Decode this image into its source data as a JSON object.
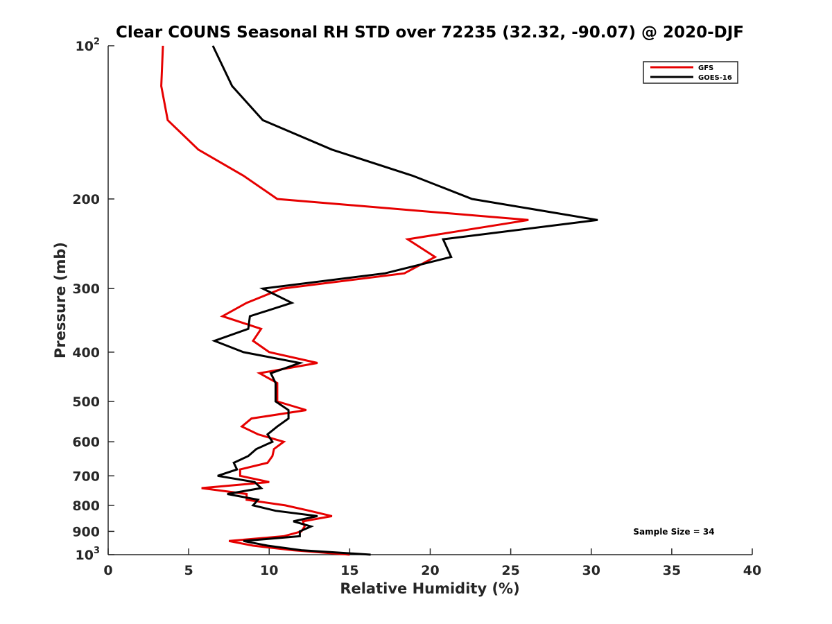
{
  "chart_data": {
    "type": "line",
    "title": "Clear COUNS Seasonal RH STD over 72235 (32.32, -90.07) @ 2020-DJF",
    "xlabel": "Relative Humidity (%)",
    "ylabel": "Pressure (mb)",
    "xlim": [
      0,
      40
    ],
    "ylim": [
      100,
      1000
    ],
    "yscale": "log",
    "y_reversed": true,
    "grid": false,
    "xticks": [
      0,
      5,
      10,
      15,
      20,
      25,
      30,
      35,
      40
    ],
    "xtick_labels": [
      "0",
      "5",
      "10",
      "15",
      "20",
      "25",
      "30",
      "35",
      "40"
    ],
    "yticks": [
      100,
      200,
      300,
      400,
      500,
      600,
      700,
      800,
      900,
      1000
    ],
    "ytick_labels": [
      "10^2",
      "200",
      "300",
      "400",
      "500",
      "600",
      "700",
      "800",
      "900",
      "10^3"
    ],
    "legend_position": "top-right",
    "annotation": "Sample Size = 34",
    "pressure": [
      100,
      120,
      140,
      160,
      180,
      200,
      220,
      240,
      260,
      280,
      300,
      320,
      340,
      360,
      380,
      400,
      420,
      440,
      460,
      480,
      500,
      520,
      540,
      560,
      580,
      600,
      620,
      640,
      660,
      680,
      700,
      720,
      740,
      760,
      780,
      800,
      820,
      840,
      860,
      880,
      900,
      920,
      940,
      960,
      980,
      1000
    ],
    "series": [
      {
        "name": "GFS",
        "color": "#e60000",
        "values": [
          3.4,
          3.3,
          3.7,
          5.6,
          8.4,
          10.5,
          26.1,
          18.6,
          20.3,
          18.4,
          10.8,
          8.6,
          7.1,
          9.5,
          9.0,
          10.0,
          13.0,
          9.4,
          10.5,
          10.5,
          10.5,
          12.3,
          8.9,
          8.3,
          9.3,
          10.9,
          10.3,
          10.2,
          9.9,
          8.2,
          8.2,
          10.0,
          5.8,
          8.6,
          8.6,
          11.0,
          12.5,
          13.9,
          12.1,
          12.2,
          12.0,
          10.9,
          7.5,
          9.0,
          11.5,
          15.0
        ]
      },
      {
        "name": "GOES-16",
        "color": "#000000",
        "values": [
          6.5,
          7.7,
          9.6,
          13.9,
          18.9,
          22.6,
          30.4,
          20.8,
          21.3,
          17.2,
          9.6,
          11.4,
          8.8,
          8.7,
          6.6,
          8.4,
          11.9,
          10.1,
          10.4,
          10.4,
          10.4,
          11.2,
          11.2,
          10.5,
          9.9,
          10.2,
          9.2,
          8.7,
          7.8,
          8.0,
          6.8,
          9.1,
          9.5,
          7.4,
          9.3,
          9.0,
          10.4,
          13.0,
          11.5,
          12.6,
          11.9,
          11.9,
          8.4,
          9.9,
          12.0,
          16.3
        ]
      }
    ]
  }
}
